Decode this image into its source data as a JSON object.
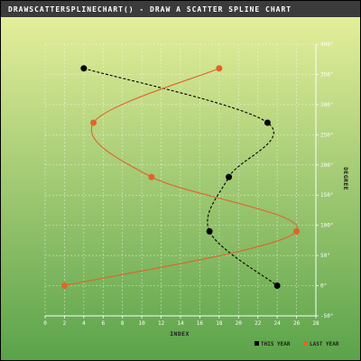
{
  "window_title": "DRAWSCATTERSPLINECHART() - DRAW A SCATTER SPLINE CHART",
  "colors": {
    "frame_bg": "#ffffff",
    "title_bar": "#3b3b3b",
    "plot_top": "#e4ee9a",
    "plot_bottom": "#5aa34a",
    "this_year": "#000000",
    "last_year": "#e0642a"
  },
  "chart_data": {
    "type": "scatter",
    "xlabel": "INDEX",
    "ylabel": "DEGREE",
    "xlim": [
      0,
      28
    ],
    "ylim": [
      -50,
      400
    ],
    "x_ticks": [
      "0",
      "2",
      "4",
      "6",
      "8",
      "10",
      "12",
      "14",
      "16",
      "18",
      "20",
      "22",
      "24",
      "26",
      "28"
    ],
    "y_ticks": [
      "-50°",
      "0°",
      "50°",
      "100°",
      "150°",
      "200°",
      "250°",
      "300°",
      "350°",
      "400°"
    ],
    "y_tick_values": [
      -50,
      0,
      50,
      100,
      150,
      200,
      250,
      300,
      350,
      400
    ],
    "grid": true,
    "legend_position": "bottom-right",
    "series": [
      {
        "name": "THIS YEAR",
        "color": "#000000",
        "line_style": "dashed",
        "points": [
          [
            4,
            360
          ],
          [
            23,
            270
          ],
          [
            19,
            180
          ],
          [
            17,
            90
          ],
          [
            24,
            0
          ]
        ]
      },
      {
        "name": "LAST YEAR",
        "color": "#e0642a",
        "line_style": "solid",
        "points": [
          [
            18,
            360
          ],
          [
            5,
            270
          ],
          [
            11,
            180
          ],
          [
            26,
            90
          ],
          [
            2,
            0
          ]
        ]
      }
    ]
  }
}
